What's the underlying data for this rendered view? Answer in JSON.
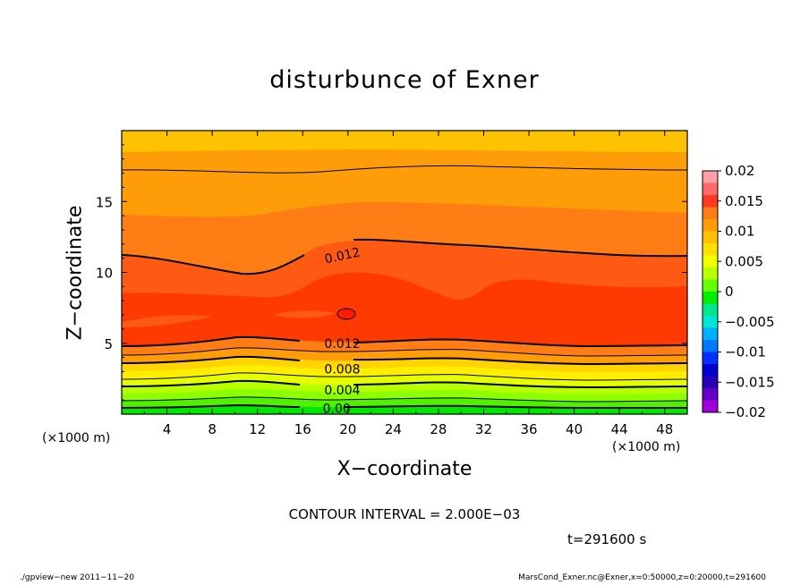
{
  "chart_data": {
    "type": "contour",
    "title": "disturbunce of Exner",
    "xlabel": "X−coordinate",
    "ylabel": "Z−coordinate",
    "x_unit_label": "(×1000 m)",
    "xlim": [
      0,
      50
    ],
    "ylim": [
      0,
      20
    ],
    "x_ticks": [
      4,
      8,
      12,
      16,
      20,
      24,
      28,
      32,
      36,
      40,
      44,
      48
    ],
    "y_ticks": [
      5,
      10,
      15
    ],
    "colorbar": {
      "ticks": [
        0.02,
        0.015,
        0.01,
        0.005,
        0,
        -0.005,
        -0.01,
        -0.015,
        -0.02
      ],
      "tick_labels": [
        "0.02",
        "0.015",
        "0.01",
        "0.005",
        "0",
        "−0.005",
        "−0.01",
        "−0.015",
        "−0.02"
      ],
      "colors": [
        "#ffa0a8",
        "#ff6a6a",
        "#ff3a1e",
        "#ff7d14",
        "#ff9d08",
        "#ffc200",
        "#ffdf00",
        "#f0ff00",
        "#b8ff00",
        "#64ff00",
        "#00ec00",
        "#00e68c",
        "#00e6d2",
        "#00b0ff",
        "#0078ff",
        "#0032ff",
        "#0000cc",
        "#2800b4",
        "#6400c8",
        "#a000dc"
      ]
    },
    "contour_interval": 0.002,
    "contour_labels": [
      {
        "text": "0.012",
        "x": 19.5,
        "z": 11.2
      },
      {
        "text": "0.012",
        "x": 19.5,
        "z": 5.0
      },
      {
        "text": "0.008",
        "x": 19.5,
        "z": 3.2
      },
      {
        "text": "0.004",
        "x": 19.5,
        "z": 1.7
      },
      {
        "text": "0.00",
        "x": 19.0,
        "z": 0.4
      }
    ],
    "local_max": {
      "x": 19.8,
      "z": 7.1
    }
  },
  "texts": {
    "title": "disturbunce of Exner",
    "xlabel": "X−coordinate",
    "ylabel": "Z−coordinate",
    "x_unit_left": "(×1000 m)",
    "x_unit_right": "(×1000 m)",
    "contour_interval": "CONTOUR INTERVAL = 2.000E−03",
    "time": "t=291600 s",
    "footer_left": "./gpview−new   2011−11−20",
    "footer_right": "MarsCond_Exner.nc@Exner,x=0:50000,z=0:20000,t=291600"
  }
}
